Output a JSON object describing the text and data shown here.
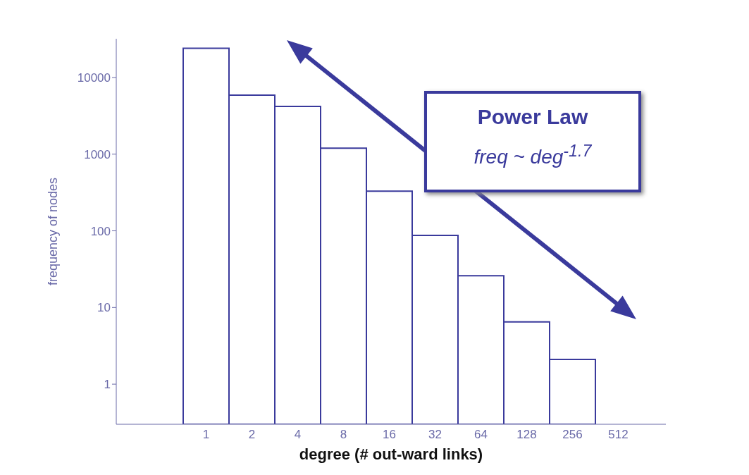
{
  "chart_data": {
    "type": "bar",
    "xlabel": "degree (# out-ward links)",
    "ylabel": "frequency of nodes",
    "categories": [
      "1",
      "2",
      "4",
      "8",
      "16",
      "32",
      "64",
      "128",
      "256",
      "512"
    ],
    "values": [
      24000,
      5900,
      4200,
      1200,
      330,
      87,
      26,
      6.5,
      2.1,
      null
    ],
    "color": "#ffffff",
    "log": true,
    "ylim": [
      0.3,
      32000
    ],
    "yticks": [
      1,
      10,
      100,
      1000,
      10000
    ],
    "annotations": [
      "Power Law",
      "freq ~ deg$^{-1.7}$"
    ]
  }
}
